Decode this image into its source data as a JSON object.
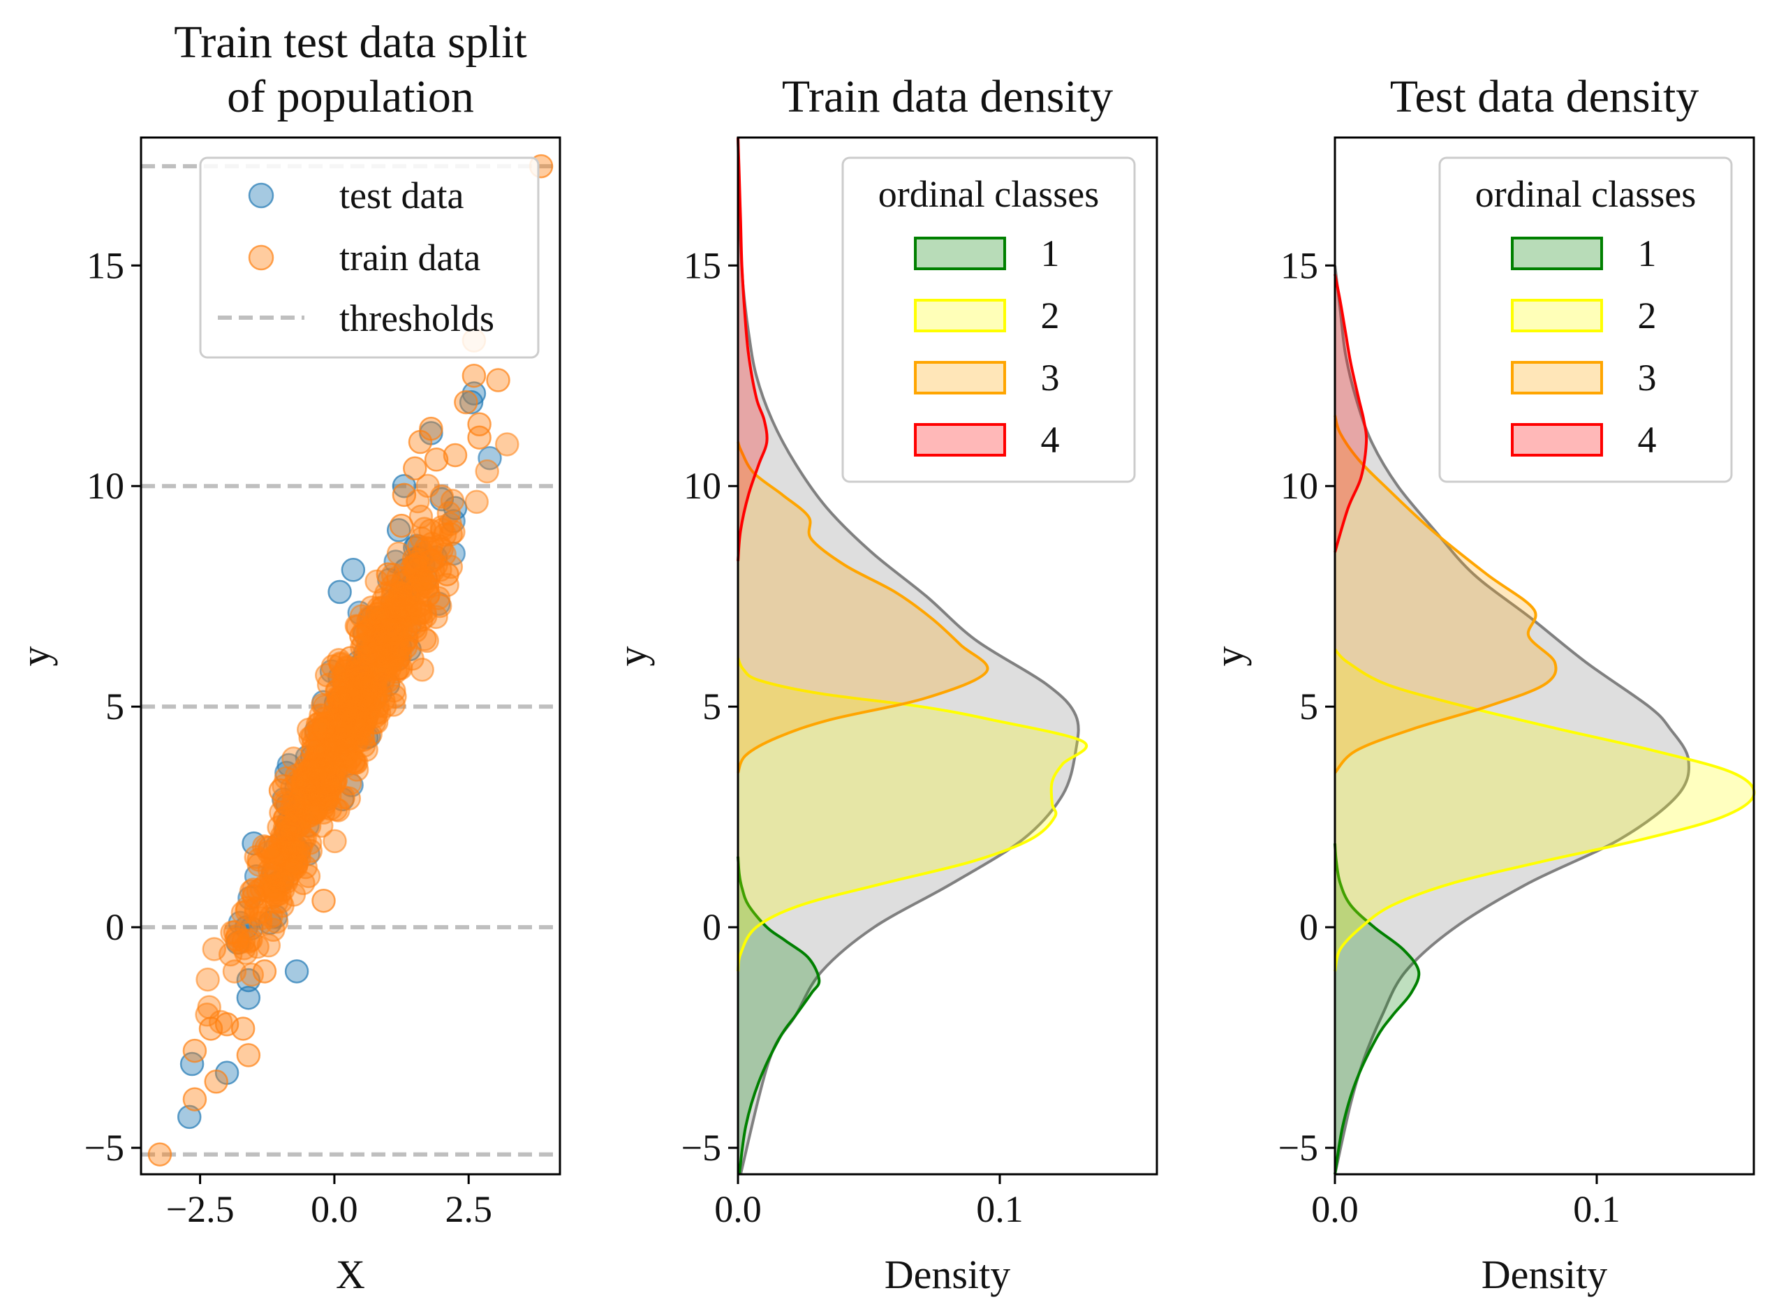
{
  "chart_data": [
    {
      "type": "scatter",
      "title_lines": [
        "Train test data split",
        "of population"
      ],
      "xlabel": "X",
      "ylabel": "y",
      "xlim": [
        -3.6,
        4.2
      ],
      "ylim": [
        -5.6,
        17.9
      ],
      "x_ticks": [
        -2.5,
        0.0,
        2.5
      ],
      "x_tick_labels": [
        "−2.5",
        "0.0",
        "2.5"
      ],
      "y_ticks": [
        -5,
        0,
        5,
        10,
        15
      ],
      "y_tick_labels": [
        "−5",
        "0",
        "5",
        "10",
        "15"
      ],
      "thresholds": [
        -5.15,
        0,
        5,
        10,
        17.25
      ],
      "series": [
        {
          "name": "test data",
          "color": "#1f77b4",
          "points": [
            [
              -2.7,
              -4.3
            ],
            [
              -2.65,
              -3.1
            ],
            [
              -2.0,
              -3.3
            ],
            [
              -1.6,
              -1.6
            ],
            [
              -1.5,
              1.9
            ],
            [
              -1.8,
              -0.35
            ],
            [
              -1.6,
              -1.2
            ],
            [
              -0.7,
              -1.0
            ],
            [
              -0.4,
              3.0
            ],
            [
              0.1,
              7.6
            ],
            [
              0.35,
              8.1
            ],
            [
              0.4,
              5.8
            ],
            [
              0.9,
              6.3
            ],
            [
              1.2,
              9.0
            ],
            [
              1.3,
              10.0
            ],
            [
              1.4,
              6.3
            ],
            [
              1.7,
              7.9
            ],
            [
              1.8,
              11.2
            ],
            [
              2.25,
              9.5
            ],
            [
              2.55,
              11.9
            ],
            [
              2.6,
              12.1
            ],
            [
              -1.2,
              0.1
            ],
            [
              -0.9,
              2.2
            ],
            [
              0.15,
              2.9
            ],
            [
              0.6,
              4.3
            ],
            [
              1.0,
              5.5
            ],
            [
              1.5,
              8.6
            ],
            [
              2.0,
              9.7
            ]
          ]
        },
        {
          "name": "train data",
          "color": "#ff7f0e",
          "points": [
            [
              -3.25,
              -5.15
            ],
            [
              -2.6,
              -3.9
            ],
            [
              -2.2,
              -3.5
            ],
            [
              -2.6,
              -2.8
            ],
            [
              -2.3,
              -2.3
            ],
            [
              -2.0,
              -2.2
            ],
            [
              -1.6,
              -2.9
            ],
            [
              -1.7,
              -2.3
            ],
            [
              -1.3,
              -1.0
            ],
            [
              -0.2,
              0.6
            ],
            [
              -1.5,
              0.7
            ],
            [
              -1.2,
              1.8
            ],
            [
              -1.0,
              3.1
            ],
            [
              -0.5,
              3.3
            ],
            [
              -0.2,
              4.5
            ],
            [
              0.1,
              5.2
            ],
            [
              0.3,
              6.1
            ],
            [
              0.5,
              6.6
            ],
            [
              0.8,
              7.1
            ],
            [
              1.0,
              8.0
            ],
            [
              1.25,
              9.1
            ],
            [
              1.3,
              9.8
            ],
            [
              1.5,
              10.4
            ],
            [
              1.6,
              11.0
            ],
            [
              1.9,
              10.6
            ],
            [
              2.25,
              10.7
            ],
            [
              2.45,
              11.9
            ],
            [
              2.6,
              12.5
            ],
            [
              2.6,
              13.3
            ],
            [
              2.7,
              11.4
            ],
            [
              3.05,
              12.4
            ],
            [
              3.85,
              17.25
            ],
            [
              1.8,
              11.3
            ],
            [
              2.7,
              11.1
            ],
            [
              -0.4,
              4.0
            ],
            [
              1.8,
              8.3
            ],
            [
              2.1,
              8.0
            ],
            [
              0.2,
              5.8
            ]
          ]
        }
      ],
      "legend": {
        "location": "upper-center",
        "entries": [
          "test data",
          "train data",
          "thresholds"
        ]
      }
    },
    {
      "type": "area",
      "title": "Train data density",
      "xlabel": "Density",
      "ylabel": "y",
      "xlim": [
        0,
        0.16
      ],
      "ylim": [
        -5.6,
        17.9
      ],
      "x_ticks": [
        0.0,
        0.1
      ],
      "x_tick_labels": [
        "0.0",
        "0.1"
      ],
      "y_ticks": [
        -5,
        0,
        5,
        10,
        15
      ],
      "y_tick_labels": [
        "−5",
        "0",
        "5",
        "10",
        "15"
      ],
      "legend": {
        "title": "ordinal classes",
        "location": "upper-right",
        "entries": [
          "1",
          "2",
          "3",
          "4"
        ]
      },
      "series": [
        {
          "name": "total",
          "color": "#808080",
          "y": [
            -5.6,
            -3,
            -2,
            -1,
            0,
            1,
            2,
            3,
            4,
            4.8,
            5.5,
            6.5,
            7.5,
            8.5,
            9.5,
            10.5,
            11.5,
            12.5,
            13.5,
            14.5,
            15.5,
            16.5,
            17.9
          ],
          "density": [
            0.001,
            0.012,
            0.022,
            0.032,
            0.052,
            0.082,
            0.109,
            0.124,
            0.129,
            0.129,
            0.118,
            0.091,
            0.072,
            0.051,
            0.034,
            0.022,
            0.013,
            0.007,
            0.004,
            0.002,
            0.001,
            0.0005,
            0.0
          ]
        },
        {
          "name": "1",
          "color": "#008000",
          "y": [
            -5.6,
            -4.5,
            -3.5,
            -2.5,
            -2,
            -1.5,
            -1.2,
            -0.7,
            -0.3,
            0,
            0.5,
            0.9,
            1.2,
            1.6
          ],
          "density": [
            0.0005,
            0.003,
            0.008,
            0.016,
            0.022,
            0.028,
            0.031,
            0.027,
            0.018,
            0.011,
            0.004,
            0.0015,
            0.0005,
            0.0
          ]
        },
        {
          "name": "2",
          "color": "#ffff00",
          "y": [
            -1,
            -0.6,
            0,
            0.5,
            1,
            1.5,
            2,
            2.5,
            2.8,
            3.3,
            3.7,
            4.2,
            4.7,
            5.0,
            5.3,
            5.6,
            5.85,
            6.1
          ],
          "density": [
            0.0,
            0.001,
            0.007,
            0.024,
            0.056,
            0.09,
            0.112,
            0.121,
            0.12,
            0.12,
            0.124,
            0.132,
            0.097,
            0.07,
            0.031,
            0.008,
            0.002,
            0.0
          ]
        },
        {
          "name": "3",
          "color": "#ffa500",
          "y": [
            3.5,
            3.9,
            4.3,
            4.7,
            5.2,
            5.8,
            6.4,
            7.0,
            7.6,
            8.2,
            8.8,
            9.3,
            9.8,
            10.3,
            10.8,
            11.0
          ],
          "density": [
            0.0,
            0.003,
            0.015,
            0.035,
            0.072,
            0.095,
            0.085,
            0.074,
            0.06,
            0.041,
            0.028,
            0.027,
            0.017,
            0.006,
            0.0012,
            0.0
          ]
        },
        {
          "name": "4",
          "color": "#ff0000",
          "y": [
            8.3,
            9,
            9.8,
            10.5,
            11.0,
            11.5,
            12,
            13,
            14,
            15,
            16,
            17,
            17.9
          ],
          "density": [
            0.0,
            0.001,
            0.004,
            0.008,
            0.011,
            0.01,
            0.007,
            0.004,
            0.0025,
            0.0015,
            0.001,
            0.0005,
            0.0
          ]
        }
      ]
    },
    {
      "type": "area",
      "title": "Test data density",
      "xlabel": "Density",
      "ylabel": "y",
      "xlim": [
        0,
        0.16
      ],
      "ylim": [
        -5.6,
        17.9
      ],
      "x_ticks": [
        0.0,
        0.1
      ],
      "x_tick_labels": [
        "0.0",
        "0.1"
      ],
      "y_ticks": [
        -5,
        0,
        5,
        10,
        15
      ],
      "y_tick_labels": [
        "−5",
        "0",
        "5",
        "10",
        "15"
      ],
      "legend": {
        "title": "ordinal classes",
        "location": "upper-right",
        "entries": [
          "1",
          "2",
          "3",
          "4"
        ]
      },
      "series": [
        {
          "name": "total",
          "color": "#808080",
          "y": [
            -5.6,
            -4,
            -3,
            -2,
            -1,
            0,
            1,
            2,
            3,
            3.8,
            4.5,
            5,
            6,
            7,
            8,
            9,
            10,
            11,
            12,
            13,
            14,
            15
          ],
          "density": [
            0.0,
            0.006,
            0.011,
            0.018,
            0.027,
            0.046,
            0.074,
            0.109,
            0.131,
            0.135,
            0.128,
            0.12,
            0.096,
            0.075,
            0.053,
            0.038,
            0.024,
            0.014,
            0.008,
            0.004,
            0.002,
            0.0
          ]
        },
        {
          "name": "1",
          "color": "#008000",
          "y": [
            -5.6,
            -4.5,
            -3.5,
            -2.5,
            -2,
            -1.5,
            -1.0,
            -0.5,
            0,
            0.5,
            1.0,
            1.5,
            1.9
          ],
          "density": [
            0.0,
            0.003,
            0.008,
            0.016,
            0.022,
            0.029,
            0.032,
            0.026,
            0.015,
            0.006,
            0.002,
            0.0005,
            0.0
          ]
        },
        {
          "name": "2",
          "color": "#ffff00",
          "y": [
            -1,
            -0.5,
            0,
            0.5,
            1,
            1.5,
            2,
            2.5,
            3,
            3.5,
            4,
            4.5,
            5,
            5.5,
            6,
            6.3
          ],
          "density": [
            0.0,
            0.002,
            0.01,
            0.022,
            0.045,
            0.08,
            0.118,
            0.148,
            0.16,
            0.152,
            0.122,
            0.085,
            0.05,
            0.02,
            0.005,
            0.0
          ]
        },
        {
          "name": "3",
          "color": "#ffa500",
          "y": [
            3.5,
            4,
            4.5,
            5,
            5.5,
            6,
            6.6,
            7.2,
            8,
            9,
            10,
            10.6,
            11.2,
            11.6
          ],
          "density": [
            0.0,
            0.008,
            0.03,
            0.058,
            0.08,
            0.084,
            0.074,
            0.076,
            0.058,
            0.037,
            0.019,
            0.009,
            0.002,
            0.0
          ]
        },
        {
          "name": "4",
          "color": "#ff0000",
          "y": [
            8.5,
            9.5,
            10.2,
            11,
            11.5,
            12,
            12.8,
            13.5,
            14.2,
            14.8
          ],
          "density": [
            0.0,
            0.005,
            0.01,
            0.012,
            0.011,
            0.009,
            0.006,
            0.004,
            0.002,
            0.0
          ]
        }
      ]
    }
  ]
}
